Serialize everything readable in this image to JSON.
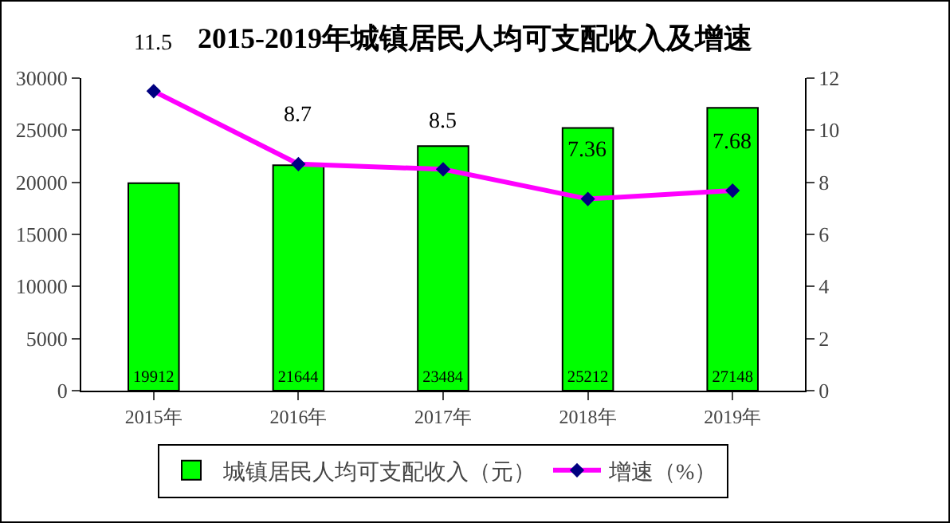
{
  "chart_data": {
    "type": "bar",
    "title": "2015-2019年城镇居民人均可支配收入及增速",
    "categories": [
      "2015年",
      "2016年",
      "2017年",
      "2018年",
      "2019年"
    ],
    "series": [
      {
        "name": "城镇居民人均可支配收入（元）",
        "color": "#00ff00",
        "values": [
          19912,
          21644,
          23484,
          25212,
          27148
        ]
      },
      {
        "name": "增速（%）",
        "type": "line",
        "axis": "y2",
        "color": "#ff00ff",
        "marker": "diamond",
        "values": [
          11.5,
          8.7,
          8.5,
          7.36,
          7.68
        ]
      }
    ],
    "ylim": [
      0,
      30000
    ],
    "yticks": [
      0,
      5000,
      10000,
      15000,
      20000,
      25000,
      30000
    ],
    "y2lim": [
      0,
      12
    ],
    "y2ticks": [
      0,
      2,
      4,
      6,
      8,
      10,
      12
    ],
    "data_labels": true,
    "legend": "bottom"
  }
}
